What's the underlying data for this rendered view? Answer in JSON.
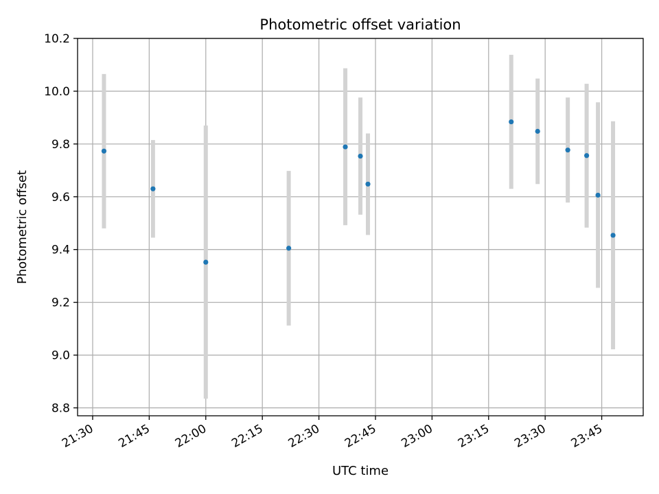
{
  "chart_data": {
    "type": "scatter",
    "title": "Photometric offset variation",
    "xlabel": "UTC time",
    "ylabel": "Photometric offset",
    "x_axis_type": "time",
    "xlim": [
      "21:26",
      "23:56"
    ],
    "ylim": [
      8.77,
      10.2
    ],
    "x_ticks": [
      "21:30",
      "21:45",
      "22:00",
      "22:15",
      "22:30",
      "22:45",
      "23:00",
      "23:15",
      "23:30",
      "23:45"
    ],
    "y_ticks": [
      "8.8",
      "9.0",
      "9.2",
      "9.4",
      "9.6",
      "9.8",
      "10.0",
      "10.2"
    ],
    "grid": true,
    "legend": "none",
    "colors": {
      "point": "#1f77b4",
      "errorbar": "#d3d3d3",
      "grid": "#b0b0b0"
    },
    "series": [
      {
        "points": [
          {
            "x": "21:33",
            "y": 9.773,
            "low": 9.48,
            "high": 10.065
          },
          {
            "x": "21:46",
            "y": 9.63,
            "low": 9.445,
            "high": 9.815
          },
          {
            "x": "22:00",
            "y": 9.352,
            "low": 8.835,
            "high": 9.87
          },
          {
            "x": "22:22",
            "y": 9.405,
            "low": 9.112,
            "high": 9.698
          },
          {
            "x": "22:37",
            "y": 9.789,
            "low": 9.492,
            "high": 10.087
          },
          {
            "x": "22:41",
            "y": 9.754,
            "low": 9.532,
            "high": 9.976
          },
          {
            "x": "22:43",
            "y": 9.648,
            "low": 9.455,
            "high": 9.84
          },
          {
            "x": "23:21",
            "y": 9.884,
            "low": 9.63,
            "high": 10.138
          },
          {
            "x": "23:28",
            "y": 9.848,
            "low": 9.648,
            "high": 10.048
          },
          {
            "x": "23:36",
            "y": 9.777,
            "low": 9.578,
            "high": 9.976
          },
          {
            "x": "23:41",
            "y": 9.756,
            "low": 9.483,
            "high": 10.028
          },
          {
            "x": "23:44",
            "y": 9.606,
            "low": 9.255,
            "high": 9.958
          },
          {
            "x": "23:48",
            "y": 9.454,
            "low": 9.022,
            "high": 9.886
          }
        ]
      }
    ]
  }
}
